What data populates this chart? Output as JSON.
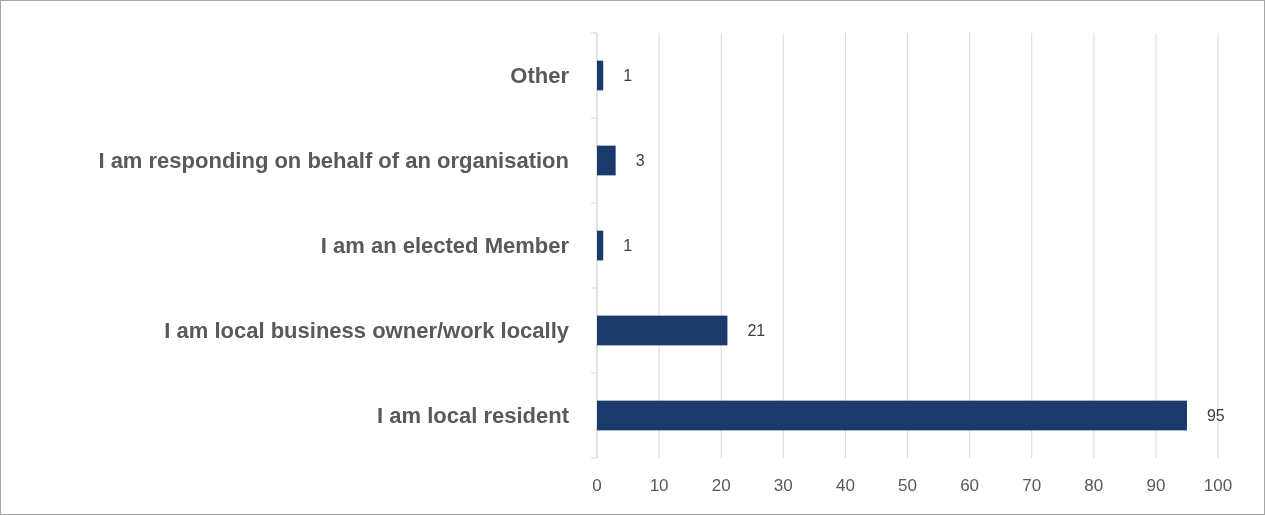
{
  "chart_data": {
    "type": "bar",
    "orientation": "horizontal",
    "categories": [
      "Other",
      "I am responding on behalf of an organisation",
      "I am an elected Member",
      "I am local business owner/work locally",
      "I am local resident"
    ],
    "values": [
      1,
      3,
      1,
      21,
      95
    ],
    "color": "#1b3a6b",
    "xlim": [
      0,
      100
    ],
    "xticks": [
      0,
      10,
      20,
      30,
      40,
      50,
      60,
      70,
      80,
      90,
      100
    ],
    "grid": "x",
    "data_labels": true
  }
}
